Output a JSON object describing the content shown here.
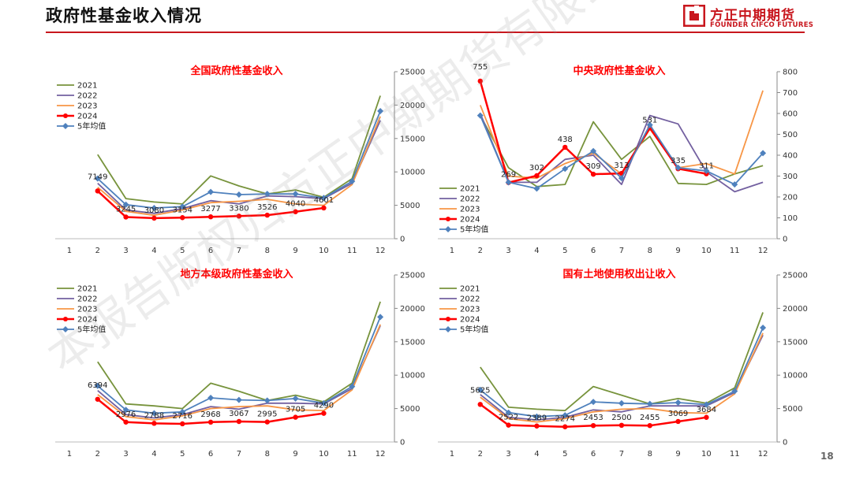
{
  "header": {
    "title": "政府性基金收入情况"
  },
  "logo": {
    "cn": "方正中期期货",
    "en": "FOUNDER CIFCO FUTURES"
  },
  "page_number": "18",
  "watermark": "本报告版权归方正中期期货有限公司所有",
  "colors": {
    "y2021": "#77933c",
    "y2022": "#7360a0",
    "y2023": "#f79646",
    "y2024": "#ff0000",
    "avg": "#4f81bd",
    "title": "#ff0000",
    "brand": "#c8161d"
  },
  "chart_data": [
    {
      "type": "line",
      "title": "全国政府性基金收入",
      "categories": [
        "1",
        "2",
        "3",
        "4",
        "5",
        "6",
        "7",
        "8",
        "9",
        "10",
        "11",
        "12"
      ],
      "ylim": [
        0,
        25000
      ],
      "yticks": [
        "0",
        "5000",
        "10000",
        "15000",
        "20000",
        "25000"
      ],
      "legend_position": "top-left",
      "series": [
        {
          "name": "2021",
          "values": [
            null,
            12600,
            6000,
            5500,
            5200,
            9400,
            7900,
            6700,
            7300,
            6200,
            9000,
            21400
          ]
        },
        {
          "name": "2022",
          "values": [
            null,
            8300,
            4300,
            3800,
            4500,
            5700,
            5200,
            6400,
            6300,
            6000,
            8300,
            17700
          ]
        },
        {
          "name": "2023",
          "values": [
            null,
            7700,
            4100,
            3500,
            4300,
            5400,
            5600,
            5900,
            5200,
            5000,
            8100,
            18300
          ]
        },
        {
          "name": "2024",
          "values": [
            null,
            7149,
            3245,
            3080,
            3154,
            3277,
            3380,
            3526,
            4040,
            4601,
            null,
            null
          ],
          "labels": [
            "",
            "7149",
            "3245",
            "3080",
            "3154",
            "3277",
            "3380",
            "3526",
            "4040",
            "4601",
            "",
            ""
          ]
        },
        {
          "name": "5年均值",
          "values": [
            null,
            9000,
            5100,
            4600,
            4800,
            7000,
            6600,
            6700,
            6700,
            6100,
            8600,
            19100
          ]
        }
      ]
    },
    {
      "type": "line",
      "title": "中央政府性基金收入",
      "categories": [
        "1",
        "2",
        "3",
        "4",
        "5",
        "6",
        "7",
        "8",
        "9",
        "10",
        "11",
        "12"
      ],
      "ylim": [
        0,
        800
      ],
      "yticks": [
        "0",
        "100",
        "200",
        "300",
        "400",
        "500",
        "600",
        "700",
        "800"
      ],
      "legend_position": "bottom-left",
      "series": [
        {
          "name": "2021",
          "values": [
            null,
            590,
            340,
            250,
            260,
            560,
            380,
            490,
            265,
            260,
            310,
            350
          ]
        },
        {
          "name": "2022",
          "values": [
            null,
            600,
            270,
            270,
            380,
            400,
            260,
            590,
            550,
            320,
            225,
            270
          ]
        },
        {
          "name": "2023",
          "values": [
            null,
            640,
            300,
            290,
            360,
            410,
            310,
            525,
            340,
            360,
            310,
            710
          ]
        },
        {
          "name": "2024",
          "values": [
            null,
            755,
            269,
            302,
            438,
            309,
            313,
            531,
            335,
            311,
            null,
            null
          ],
          "labels": [
            "",
            "755",
            "269",
            "302",
            "438",
            "309",
            "313",
            "531",
            "335",
            "311",
            "",
            ""
          ]
        },
        {
          "name": "5年均值",
          "values": [
            null,
            590,
            270,
            240,
            335,
            420,
            290,
            545,
            340,
            325,
            260,
            410
          ]
        }
      ]
    },
    {
      "type": "line",
      "title": "地方本级政府性基金收入",
      "categories": [
        "1",
        "2",
        "3",
        "4",
        "5",
        "6",
        "7",
        "8",
        "9",
        "10",
        "11",
        "12"
      ],
      "ylim": [
        0,
        25000
      ],
      "yticks": [
        "0",
        "5000",
        "10000",
        "15000",
        "20000",
        "25000"
      ],
      "legend_position": "top-left",
      "series": [
        {
          "name": "2021",
          "values": [
            null,
            12000,
            5700,
            5400,
            5000,
            8800,
            7600,
            6200,
            7000,
            6000,
            8800,
            21000
          ]
        },
        {
          "name": "2022",
          "values": [
            null,
            7700,
            4100,
            3600,
            4100,
            5300,
            4900,
            5800,
            5800,
            5700,
            8000,
            17400
          ]
        },
        {
          "name": "2023",
          "values": [
            null,
            7100,
            3800,
            3300,
            3900,
            5000,
            5300,
            5400,
            4800,
            4700,
            7800,
            17600
          ]
        },
        {
          "name": "2024",
          "values": [
            null,
            6394,
            2976,
            2788,
            2716,
            2968,
            3067,
            2995,
            3705,
            4290,
            null,
            null
          ],
          "labels": [
            "",
            "6394",
            "2976",
            "2788",
            "2716",
            "2968",
            "3067",
            "2995",
            "3705",
            "4290",
            "",
            ""
          ]
        },
        {
          "name": "5年均值",
          "values": [
            null,
            8400,
            4800,
            4300,
            4500,
            6600,
            6300,
            6200,
            6500,
            5800,
            8300,
            18700
          ]
        }
      ]
    },
    {
      "type": "line",
      "title": "国有土地使用权出让收入",
      "categories": [
        "1",
        "2",
        "3",
        "4",
        "5",
        "6",
        "7",
        "8",
        "9",
        "10",
        "11",
        "12"
      ],
      "ylim": [
        0,
        25000
      ],
      "yticks": [
        "0",
        "5000",
        "10000",
        "15000",
        "20000",
        "25000"
      ],
      "legend_position": "top-left",
      "series": [
        {
          "name": "2021",
          "values": [
            null,
            11200,
            5200,
            4900,
            4700,
            8300,
            7000,
            5700,
            6500,
            5800,
            8100,
            19400
          ]
        },
        {
          "name": "2022",
          "values": [
            null,
            7100,
            3700,
            3300,
            3700,
            4800,
            4500,
            5400,
            5400,
            5400,
            7400,
            16000
          ]
        },
        {
          "name": "2023",
          "values": [
            null,
            6700,
            3500,
            3000,
            3500,
            4500,
            4900,
            5000,
            4400,
            4300,
            7200,
            16300
          ]
        },
        {
          "name": "2024",
          "values": [
            null,
            5625,
            2522,
            2389,
            2274,
            2453,
            2500,
            2455,
            3069,
            3684,
            null,
            null
          ],
          "labels": [
            "",
            "5625",
            "2522",
            "2389",
            "2274",
            "2453",
            "2500",
            "2455",
            "3069",
            "3684",
            "",
            ""
          ]
        },
        {
          "name": "5年均值",
          "values": [
            null,
            7800,
            4400,
            3800,
            4000,
            6000,
            5800,
            5700,
            5900,
            5600,
            7600,
            17100
          ]
        }
      ]
    }
  ]
}
